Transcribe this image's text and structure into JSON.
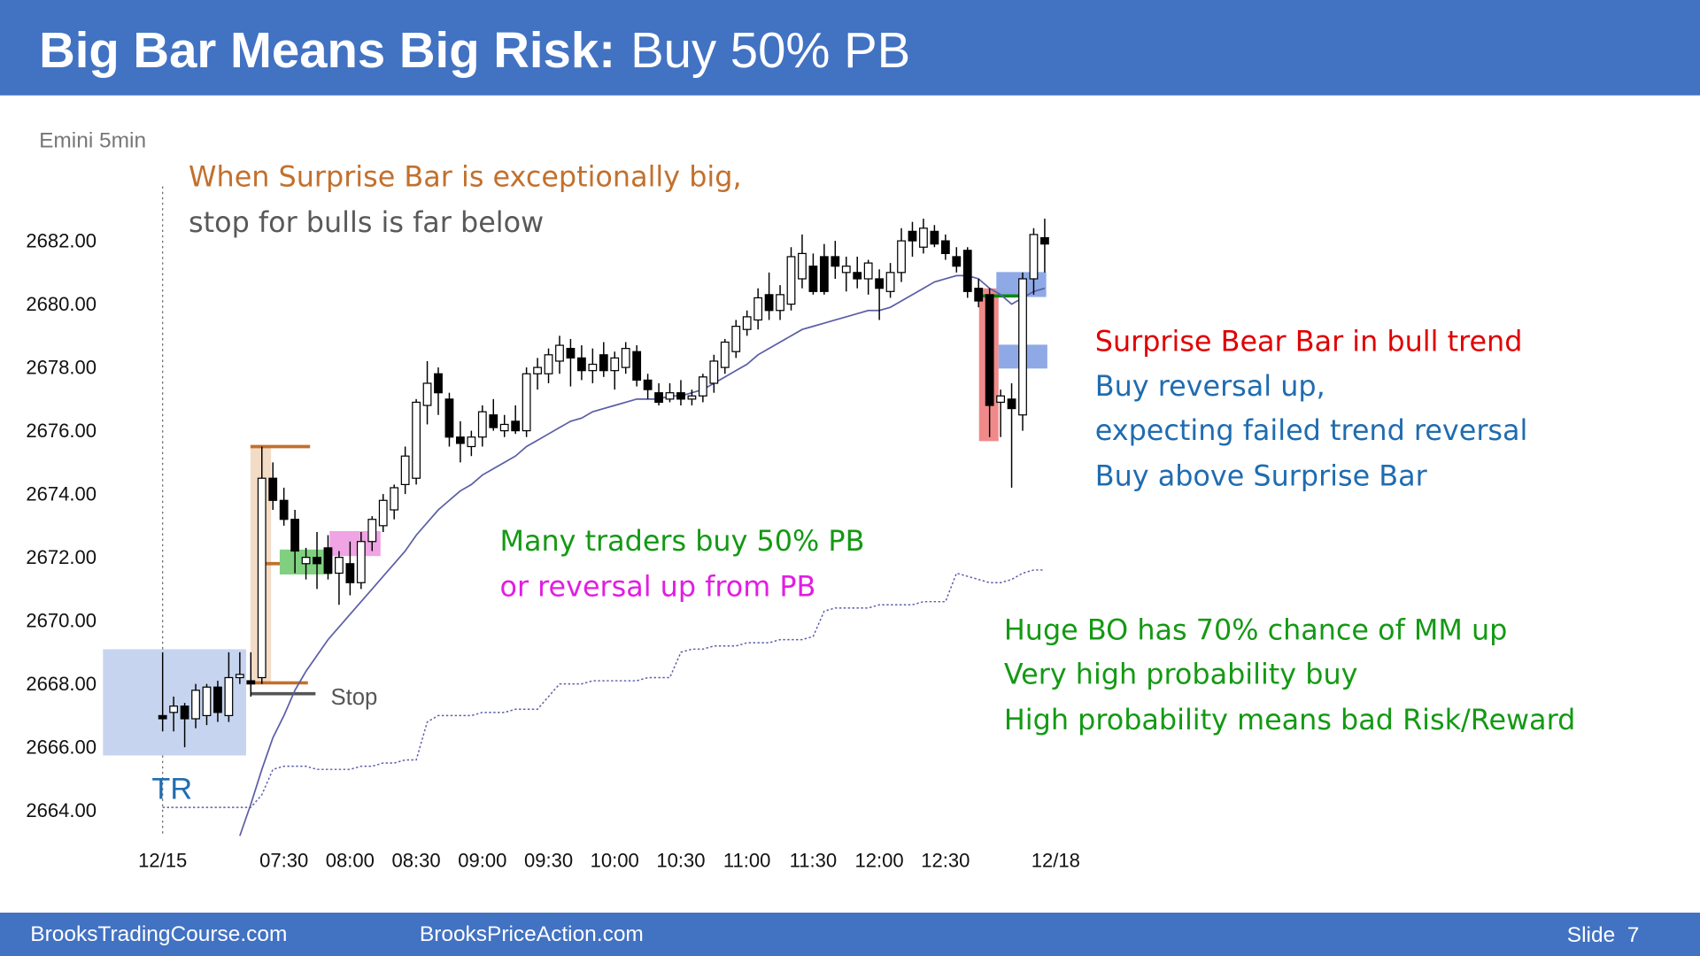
{
  "slide": {
    "title": "Big Bar Means Big Risk:",
    "subtitle": "Buy 50% PB",
    "footer_left": "BrooksTradingCourse.com",
    "footer_center": "BrooksPriceAction.com",
    "slide_number": "Slide  7"
  },
  "chart_data": {
    "type": "candlestick",
    "title": "Emini 5min",
    "annotations": [
      "When Surprise Bar is exceptionally big,",
      "stop for bulls is far below",
      "Surprise Bear Bar in bull trend",
      "Buy reversal up,",
      "expecting failed trend reversal",
      "Buy above Surprise Bar",
      "Many traders buy 50% PB",
      "or reversal up from PB",
      "Huge BO has 70% chance of MM up",
      "Very high probability buy",
      "High probability means bad Risk/Reward",
      "Stop",
      "TR"
    ],
    "categories": [
      "12/15",
      null,
      null,
      null,
      null,
      null,
      null,
      null,
      null,
      null,
      null,
      "07:30",
      null,
      null,
      null,
      null,
      null,
      "08:00",
      null,
      null,
      null,
      null,
      null,
      "08:30",
      null,
      null,
      null,
      null,
      null,
      "09:00",
      null,
      null,
      null,
      null,
      null,
      "09:30",
      null,
      null,
      null,
      null,
      null,
      "10:00",
      null,
      null,
      null,
      null,
      null,
      "10:30",
      null,
      null,
      null,
      null,
      null,
      "11:00",
      null,
      null,
      null,
      null,
      null,
      "11:30",
      null,
      null,
      null,
      null,
      null,
      "12:00",
      null,
      null,
      null,
      null,
      null,
      "12:30",
      null,
      null,
      null,
      null,
      null,
      null,
      null,
      null,
      null,
      "12/18"
    ],
    "open": [
      2667,
      2667.1,
      2667.3,
      2666.9,
      2667.0,
      2667.9,
      2667,
      2668.2,
      2668.1,
      2668.2,
      2674.5,
      2673.8,
      2673.2,
      2671.8,
      2672,
      2672.3,
      2671.5,
      2671.8,
      2671.2,
      2672.5,
      2673,
      2673.5,
      2674.3,
      2674.5,
      2676.8,
      2677.8,
      2677,
      2675.8,
      2675.5,
      2675.8,
      2676.5,
      2676,
      2676.3,
      2676,
      2677.8,
      2677.8,
      2678.2,
      2678.6,
      2678.3,
      2677.9,
      2678.4,
      2677.9,
      2678,
      2678.5,
      2677.6,
      2677.2,
      2677,
      2677.2,
      2677,
      2677.1,
      2677.5,
      2678,
      2678.5,
      2679.2,
      2679.5,
      2680.3,
      2679.8,
      2680,
      2680.8,
      2681.2,
      2681.5,
      2681.5,
      2681,
      2681.0,
      2680.8,
      2680.8,
      2680.4,
      2681,
      2682.3,
      2681.8,
      2682.3,
      2682,
      2681.5,
      2681.7,
      2680.5,
      2680.3,
      2676.9,
      2677.0,
      2676.5,
      2680.8,
      2682.1,
      null
    ],
    "high": [
      2669,
      2667.6,
      2667.4,
      2668.0,
      2668,
      2668.1,
      2669,
      2669,
      2669,
      2675.5,
      2675,
      2674.2,
      2673.5,
      2672.3,
      2672.8,
      2672.7,
      2672.2,
      2672.5,
      2672.8,
      2673.3,
      2674,
      2674.3,
      2675.5,
      2677.0,
      2678.2,
      2678,
      2677.2,
      2676.3,
      2676,
      2676.8,
      2677,
      2676.5,
      2676.8,
      2678.0,
      2678.3,
      2678.6,
      2679,
      2678.9,
      2678.7,
      2678.6,
      2678.8,
      2678.5,
      2678.8,
      2678.7,
      2677.8,
      2677.5,
      2677.5,
      2677.6,
      2677.3,
      2677.8,
      2678.4,
      2678.9,
      2679.5,
      2679.8,
      2680.5,
      2681,
      2680.6,
      2681.8,
      2682.2,
      2681.6,
      2681.9,
      2682,
      2681.5,
      2681.5,
      2681.4,
      2681.1,
      2681.3,
      2682.4,
      2682.6,
      2682.7,
      2682.5,
      2682.2,
      2681.8,
      2681.8,
      2680.8,
      2680.5,
      2677.3,
      2677.5,
      2681,
      2682.4,
      2682.7,
      null
    ],
    "low": [
      2666.5,
      2666.5,
      2666.0,
      2666.6,
      2666.7,
      2666.8,
      2666.8,
      2668,
      2667.6,
      2668,
      2673.5,
      2673.0,
      2671.5,
      2671.3,
      2671.0,
      2671.3,
      2670.5,
      2670.8,
      2671,
      2672.2,
      2672.8,
      2673.2,
      2674,
      2674.3,
      2676.2,
      2676.5,
      2675.5,
      2675,
      2675.2,
      2675.5,
      2676,
      2675.8,
      2675.9,
      2675.8,
      2677.3,
      2677.5,
      2677.8,
      2677.4,
      2677.6,
      2677.5,
      2677.7,
      2677.3,
      2677.8,
      2677.4,
      2677,
      2676.8,
      2676.9,
      2676.8,
      2676.8,
      2676.9,
      2677.2,
      2677.8,
      2678.3,
      2679,
      2679.2,
      2679.5,
      2679.5,
      2679.8,
      2680.5,
      2680.3,
      2680.3,
      2680.8,
      2680.4,
      2680.5,
      2680.3,
      2679.5,
      2680.2,
      2680.7,
      2681.5,
      2681.6,
      2681.8,
      2681.4,
      2681,
      2680.2,
      2679.9,
      2675.8,
      2675.8,
      2674.2,
      2676.0,
      2680.3,
      2681,
      null
    ],
    "close": [
      2666.9,
      2667.3,
      2666.9,
      2667.8,
      2667.9,
      2667.1,
      2668.2,
      2668.3,
      2668.0,
      2674.5,
      2673.8,
      2673.2,
      2672.2,
      2672.0,
      2671.8,
      2671.5,
      2672.0,
      2671.2,
      2672.5,
      2673.2,
      2673.8,
      2674.2,
      2675.2,
      2676.9,
      2677.5,
      2677.2,
      2675.8,
      2675.6,
      2675.8,
      2676.6,
      2676.1,
      2676.2,
      2676.0,
      2677.8,
      2678,
      2678.4,
      2678.7,
      2678.3,
      2677.9,
      2678.1,
      2677.9,
      2678.3,
      2678.6,
      2677.6,
      2677.3,
      2676.9,
      2677.2,
      2677.0,
      2677.1,
      2677.7,
      2678.2,
      2678.8,
      2679.3,
      2679.6,
      2680.2,
      2679.8,
      2680.3,
      2681.5,
      2681.6,
      2680.4,
      2680.4,
      2681.2,
      2681.2,
      2680.8,
      2681.3,
      2680.5,
      2681.0,
      2682,
      2682,
      2682.4,
      2681.9,
      2681.6,
      2681.2,
      2680.4,
      2680.1,
      2676.8,
      2677.1,
      2676.7,
      2680.8,
      2682.2,
      2681.9,
      null
    ],
    "overlays": [
      {
        "color": "#5b5ea6",
        "style": "solid",
        "values": [
          null,
          null,
          null,
          null,
          null,
          null,
          null,
          2663.2,
          2664.2,
          2665.3,
          2666.3,
          2667.0,
          2667.8,
          2668.4,
          2668.9,
          2669.4,
          2669.8,
          2670.2,
          2670.6,
          2671,
          2671.4,
          2671.8,
          2672.2,
          2672.7,
          2673.1,
          2673.5,
          2673.8,
          2674.1,
          2674.3,
          2674.6,
          2674.8,
          2675.0,
          2675.2,
          2675.5,
          2675.7,
          2675.9,
          2676.1,
          2676.3,
          2676.4,
          2676.6,
          2676.7,
          2676.8,
          2676.9,
          2677.0,
          2677.0,
          2677.0,
          2677.1,
          2677.1,
          2677.2,
          2677.3,
          2677.5,
          2677.7,
          2677.9,
          2678.1,
          2678.4,
          2678.6,
          2678.8,
          2679.0,
          2679.2,
          2679.3,
          2679.4,
          2679.5,
          2679.6,
          2679.7,
          2679.8,
          2679.8,
          2679.9,
          2680.1,
          2680.3,
          2680.5,
          2680.7,
          2680.8,
          2680.9,
          2680.9,
          2680.8,
          2680.5,
          2680.3,
          2680.0,
          2680.2,
          2680.4,
          2680.5,
          null
        ]
      },
      {
        "color": "#5b5ea6",
        "style": "dotted",
        "values": [
          2664.1,
          2664.1,
          2664.1,
          2664.1,
          2664.1,
          2664.1,
          2664.1,
          2664.1,
          2664.1,
          2664.5,
          2665.3,
          2665.4,
          2665.4,
          2665.4,
          2665.3,
          2665.3,
          2665.3,
          2665.3,
          2665.4,
          2665.4,
          2665.5,
          2665.5,
          2665.6,
          2665.6,
          2666.8,
          2667.0,
          2667.0,
          2667.0,
          2667.0,
          2667.1,
          2667.1,
          2667.1,
          2667.2,
          2667.2,
          2667.2,
          2667.6,
          2668.0,
          2668.0,
          2668.0,
          2668.1,
          2668.1,
          2668.1,
          2668.1,
          2668.1,
          2668.2,
          2668.2,
          2668.2,
          2669.0,
          2669.1,
          2669.1,
          2669.2,
          2669.2,
          2669.2,
          2669.3,
          2669.3,
          2669.3,
          2669.4,
          2669.4,
          2669.4,
          2669.5,
          2670.3,
          2670.4,
          2670.4,
          2670.4,
          2670.4,
          2670.5,
          2670.5,
          2670.5,
          2670.5,
          2670.6,
          2670.6,
          2670.6,
          2671.5,
          2671.4,
          2671.3,
          2671.2,
          2671.2,
          2671.3,
          2671.5,
          2671.6,
          2671.6,
          null
        ]
      }
    ],
    "up_color": "#ffffff",
    "down_color": "#000000",
    "ylim": [
      2663.2,
      2683
    ],
    "yticks": [
      {
        "value": 2664,
        "label": "2664.00"
      },
      {
        "value": 2666,
        "label": "2666.00"
      },
      {
        "value": 2668,
        "label": "2668.00"
      },
      {
        "value": 2670,
        "label": "2670.00"
      },
      {
        "value": 2672,
        "label": "2672.00"
      },
      {
        "value": 2674,
        "label": "2674.00"
      },
      {
        "value": 2676,
        "label": "2676.00"
      },
      {
        "value": 2678,
        "label": "2678.00"
      },
      {
        "value": 2680,
        "label": "2680.00"
      },
      {
        "value": 2682,
        "label": "2682.00"
      }
    ],
    "grid": false
  }
}
